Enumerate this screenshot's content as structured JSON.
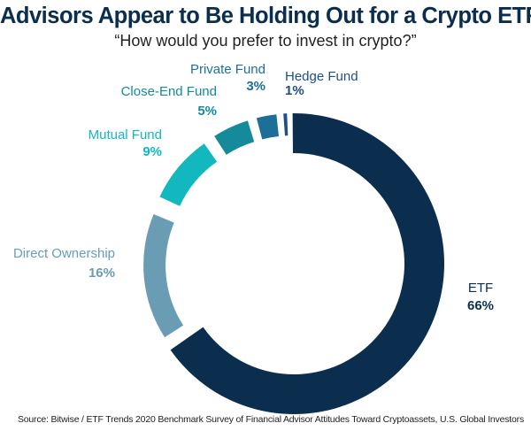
{
  "title": "Advisors Appear to Be Holding Out for a Crypto ETF",
  "subtitle": "“How would you prefer to invest in crypto?”",
  "source": "Source: Bitwise / ETF Trends 2020 Benchmark Survey of Financial Advisor Attitudes Toward Cryptoassets, U.S. Global Investors",
  "chart_data": {
    "type": "pie",
    "variant": "donut-exploded",
    "title": "Advisors Appear to Be Holding Out for a Crypto ETF",
    "subtitle": "“How would you prefer to invest in crypto?”",
    "categories": [
      "ETF",
      "Direct Ownership",
      "Mutual Fund",
      "Close-End Fund",
      "Private Fund",
      "Hedge Fund"
    ],
    "values": [
      66,
      16,
      9,
      5,
      3,
      1
    ],
    "value_labels": [
      "66%",
      "16%",
      "9%",
      "5%",
      "3%",
      "1%"
    ],
    "colors": [
      "#0b2e4f",
      "#6a9cb4",
      "#12b8bd",
      "#148a9b",
      "#1d6f9a",
      "#1e4f86"
    ],
    "label_colors": [
      "#0b2e4f",
      "#6a9cb4",
      "#12b8bd",
      "#148a9b",
      "#1d6f9a",
      "#1e4f86"
    ]
  }
}
